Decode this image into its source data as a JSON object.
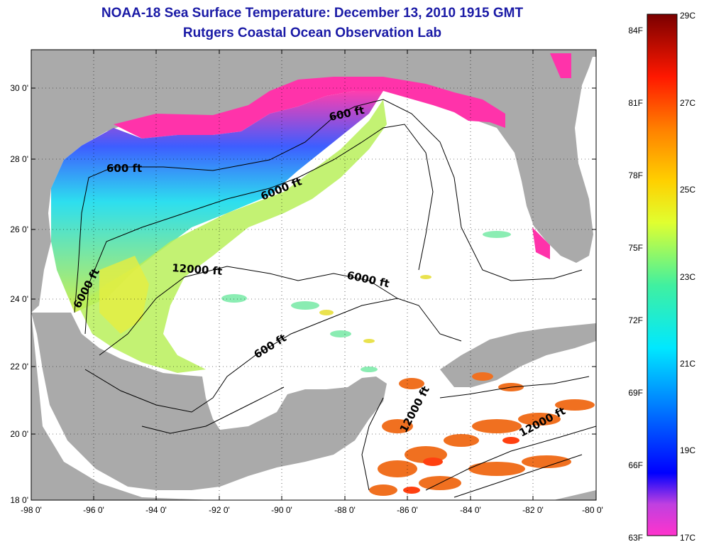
{
  "title": "NOAA-18 Sea Surface Temperature:  December 13, 2010 1915 GMT",
  "subtitle": "Rutgers Coastal Ocean Observation Lab",
  "map": {
    "lon_ticks": [
      "-98 0'",
      "-96 0'",
      "-94 0'",
      "-92 0'",
      "-90 0'",
      "-88 0'",
      "-86 0'",
      "-84 0'",
      "-82 0'",
      "-80 0'"
    ],
    "lat_ticks": [
      "30 0'",
      "28 0'",
      "26 0'",
      "24 0'",
      "22 0'",
      "20 0'",
      "18 0'"
    ],
    "contour_labels": [
      "600 ft",
      "600 ft",
      "6000 ft",
      "12000 ft",
      "6000 ft",
      "6000 ft",
      "600 ft",
      "12000 ft",
      "12000 ft"
    ]
  },
  "colorbar": {
    "f_labels": [
      "84F",
      "81F",
      "78F",
      "75F",
      "72F",
      "69F",
      "66F",
      "63F"
    ],
    "c_labels": [
      "29C",
      "27C",
      "25C",
      "23C",
      "21C",
      "19C",
      "17C"
    ]
  },
  "colors": {
    "land": "#aaaaaa",
    "title": "#1a1aa6",
    "warm": "#f07020",
    "cool": "#ff33aa"
  }
}
